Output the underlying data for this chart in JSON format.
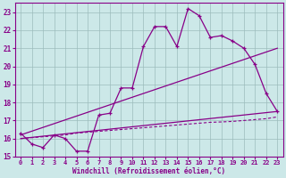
{
  "xlabel": "Windchill (Refroidissement éolien,°C)",
  "bg_color": "#cce8e8",
  "grid_color": "#9cbcbc",
  "line_color": "#880088",
  "xlim": [
    -0.5,
    23.5
  ],
  "ylim": [
    15.0,
    23.5
  ],
  "xticks": [
    0,
    1,
    2,
    3,
    4,
    5,
    6,
    7,
    8,
    9,
    10,
    11,
    12,
    13,
    14,
    15,
    16,
    17,
    18,
    19,
    20,
    21,
    22,
    23
  ],
  "yticks": [
    15,
    16,
    17,
    18,
    19,
    20,
    21,
    22,
    23
  ],
  "line1_x": [
    0,
    1,
    2,
    3,
    4,
    5,
    6,
    7,
    8,
    9,
    10,
    11,
    12,
    13,
    14,
    15,
    16,
    17,
    18,
    19,
    20,
    21,
    22,
    23
  ],
  "line1_y": [
    16.3,
    15.7,
    15.5,
    16.2,
    16.0,
    15.3,
    15.3,
    17.3,
    17.4,
    18.8,
    18.8,
    21.1,
    22.2,
    22.2,
    21.1,
    23.2,
    22.8,
    21.6,
    21.7,
    21.4,
    21.0,
    20.1,
    18.5,
    17.5
  ],
  "line2_x": [
    0,
    23
  ],
  "line2_y": [
    16.2,
    21.0
  ],
  "line3_x": [
    0,
    23
  ],
  "line3_y": [
    16.0,
    17.5
  ],
  "line4_x": [
    0,
    1,
    2,
    3,
    4,
    5,
    6,
    7,
    8,
    9,
    10,
    11,
    12,
    13,
    14,
    15,
    16,
    17,
    18,
    19,
    20,
    21,
    22,
    23
  ],
  "line4_y": [
    16.0,
    16.05,
    16.1,
    16.15,
    16.2,
    16.3,
    16.35,
    16.4,
    16.45,
    16.5,
    16.55,
    16.6,
    16.65,
    16.7,
    16.75,
    16.8,
    16.85,
    16.9,
    16.92,
    16.95,
    17.0,
    17.05,
    17.1,
    17.2
  ]
}
